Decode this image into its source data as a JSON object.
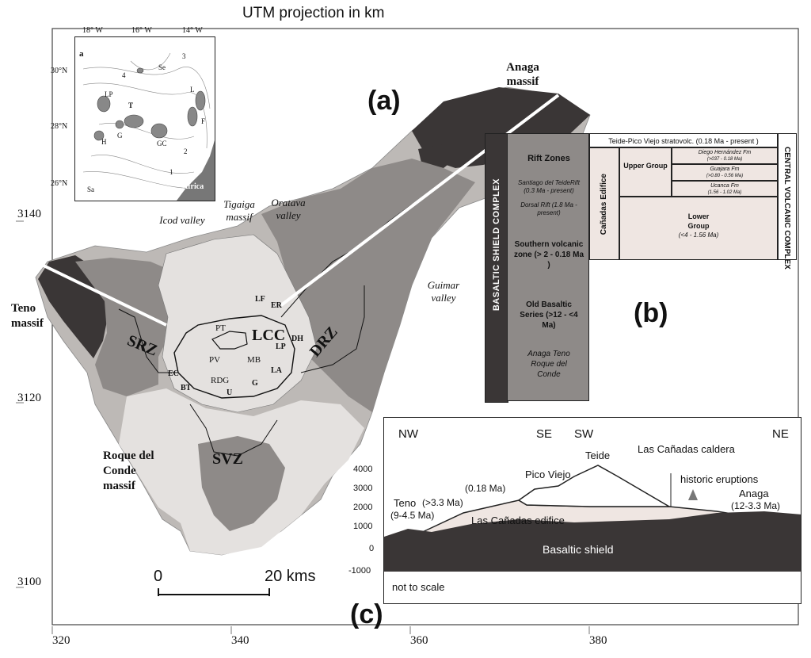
{
  "header": {
    "title": "UTM projection in km"
  },
  "panel_labels": {
    "a": "(a)",
    "b": "(b)",
    "c": "(c)"
  },
  "map": {
    "x_ticks": [
      "320",
      "340",
      "360",
      "380"
    ],
    "y_ticks": [
      "3140",
      "3120",
      "3100"
    ],
    "scale_bar": {
      "start": "0",
      "end": "20 kms"
    },
    "place_names": {
      "anaga": "Anaga massif",
      "teno": "Teno massif",
      "roque": "Roque del Conde massif",
      "icod": "Icod valley",
      "tigaiga": "Tigaiga massif",
      "orotava": "Oratava valley",
      "guimar": "Guimar valley"
    },
    "zones": {
      "srz": "SRZ",
      "drz": "DRZ",
      "svz": "SVZ",
      "lcc": "LCC"
    },
    "small_labels": [
      "LF",
      "ER",
      "PT",
      "DH",
      "LP",
      "PV",
      "MB",
      "EC",
      "LA",
      "RDG",
      "BT",
      "G",
      "U"
    ]
  },
  "inset": {
    "label": "a",
    "lon_ticks": [
      "18° W",
      "16° W",
      "14° W"
    ],
    "lat_ticks": [
      "30°N",
      "28°N",
      "26°N"
    ],
    "islands": [
      "LP",
      "T",
      "G",
      "H",
      "GC",
      "L",
      "F",
      "Se",
      "Sa"
    ],
    "numbers": [
      "3",
      "4",
      "2",
      "1"
    ],
    "continent": "Africa"
  },
  "stratigraphy": {
    "basaltic_shield": "BASALTIC SHIELD COMPLEX",
    "rift_zones": {
      "title": "Rift Zones",
      "santiago": "Santiago del TeideRift (0.3 Ma - present)",
      "dorsal": "Dorsal Rift (1.8 Ma - present)",
      "southern": "Southern volcanic zone (> 2 - 0.18 Ma )",
      "old_basaltic": "Old Basaltic Series (>12 - <4 Ma)",
      "massifs": "Anaga Teno Roque del Conde"
    },
    "teide_pico": "Teide-Pico Viejo stratovolc. (0.18 Ma - present )",
    "canadas_edifice": "Cañadas Edifice",
    "upper_group": "Upper Group",
    "formations": [
      {
        "name": "Diego Hernández Fm",
        "age": "(>037 - 0.18 Ma)"
      },
      {
        "name": "Guajara Fm",
        "age": "(>0.80 - 0.56 Ma)"
      },
      {
        "name": "Ucanca Fm",
        "age": "(1.56 - 1.02 Ma)"
      }
    ],
    "lower_group": {
      "name": "Lower Group",
      "age": "(<4 - 1.56 Ma)"
    },
    "central_complex": "CENTRAL VOLCANIC COMPLEX"
  },
  "cross_section": {
    "directions": [
      "NW",
      "SE",
      "SW",
      "NE"
    ],
    "y_ticks": [
      "4000",
      "3000",
      "2000",
      "1000",
      "0",
      "-1000"
    ],
    "labels": {
      "teide": "Teide",
      "pico_viejo": "Pico Viejo",
      "caldera": "Las Cañadas caldera",
      "historic": "historic eruptions",
      "age_018": "(0.18 Ma)",
      "age_33": "(>3.3 Ma)",
      "teno": "Teno",
      "teno_age": "(9-4.5 Ma)",
      "anaga": "Anaga",
      "anaga_age": "(12-3.3 Ma)",
      "edifice": "Las Cañadas edifice",
      "shield": "Basaltic shield",
      "scale_note": "not to scale"
    }
  },
  "colors": {
    "dark": "#3a3636",
    "mid": "#8e8a88",
    "light": "#bdb9b6",
    "pale": "#e4e1df",
    "pink": "#efe6e2"
  }
}
